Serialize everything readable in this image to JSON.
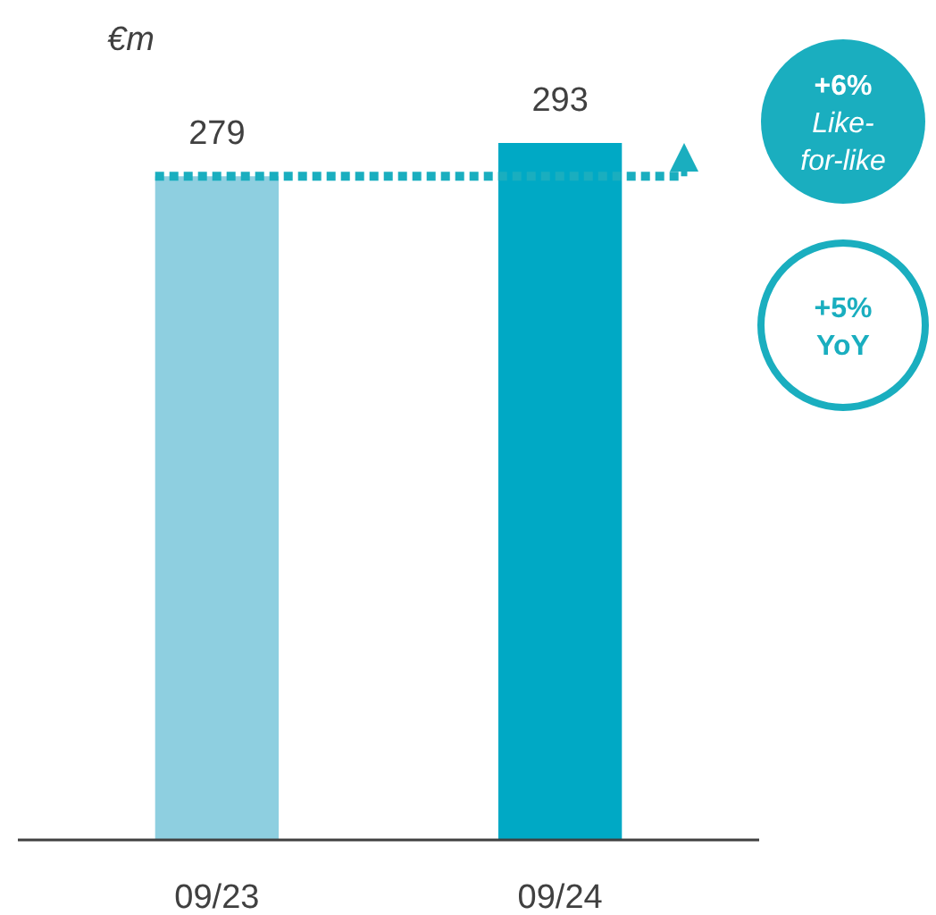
{
  "chart_data": {
    "type": "bar",
    "ylabel": "€m",
    "categories": [
      "09/23",
      "09/24"
    ],
    "values": [
      279,
      293
    ],
    "colors": [
      "#8ecfe0",
      "#00a9c5"
    ],
    "data_labels": true,
    "ref_lines": [
      {
        "axis": "y",
        "value": 279,
        "color": "#1aaebf",
        "line_style": "dotted"
      }
    ],
    "annotations": [
      "+6% Like-for-like",
      "+5% YoY"
    ]
  }
}
